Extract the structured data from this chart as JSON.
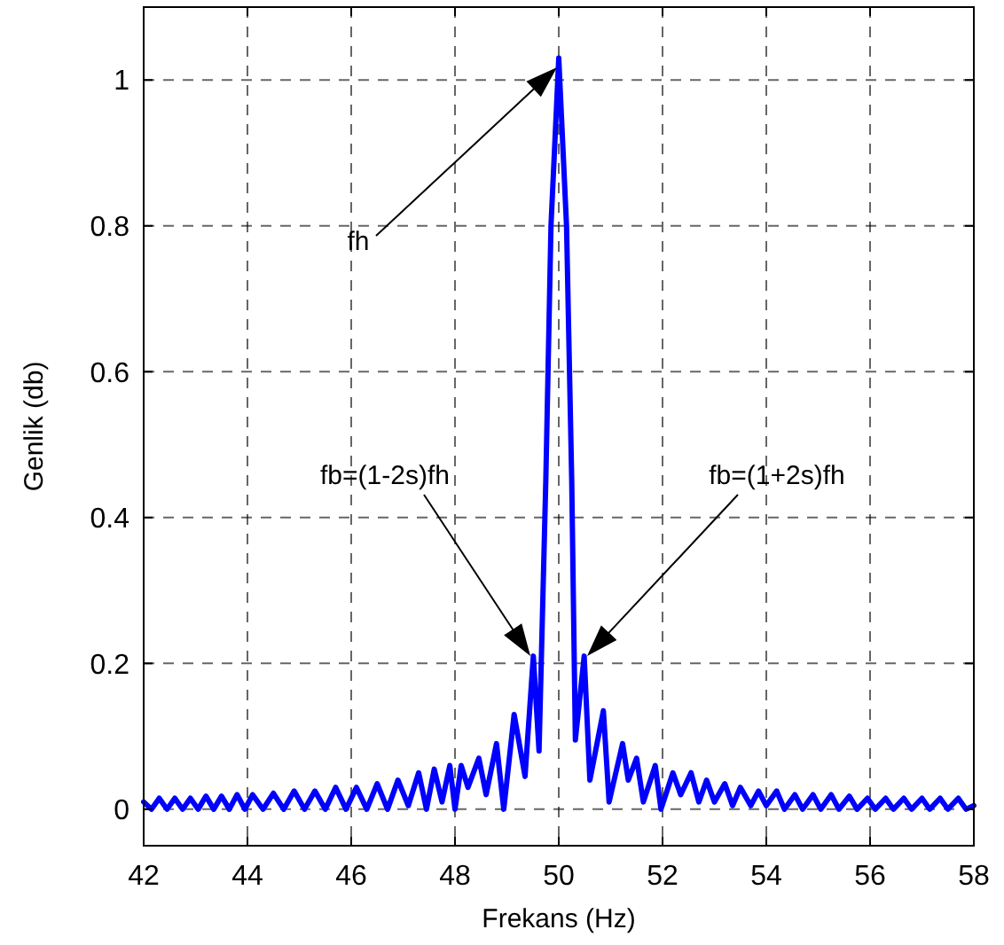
{
  "chart_data": {
    "type": "line",
    "xlabel": "Frekans (Hz)",
    "ylabel": "Genlik (db)",
    "xlim": [
      42,
      58
    ],
    "ylim": [
      -0.05,
      1.1
    ],
    "xticks": [
      42,
      44,
      46,
      48,
      50,
      52,
      54,
      56,
      58
    ],
    "yticks": [
      0,
      0.2,
      0.4,
      0.6,
      0.8,
      1
    ],
    "grid": true,
    "line_style": "solid",
    "marker": "none",
    "series": [
      {
        "color": "#0000ff",
        "x": [
          42.0,
          42.15,
          42.3,
          42.45,
          42.6,
          42.75,
          42.9,
          43.05,
          43.2,
          43.35,
          43.5,
          43.65,
          43.8,
          43.95,
          44.1,
          44.3,
          44.5,
          44.7,
          44.9,
          45.1,
          45.3,
          45.5,
          45.7,
          45.9,
          46.1,
          46.3,
          46.5,
          46.7,
          46.9,
          47.1,
          47.3,
          47.45,
          47.6,
          47.75,
          47.9,
          48.0,
          48.12,
          48.25,
          48.46,
          48.6,
          48.8,
          48.94,
          49.14,
          49.35,
          49.51,
          49.62,
          49.75,
          49.85,
          50.0,
          50.15,
          50.25,
          50.32,
          50.49,
          50.6,
          50.86,
          50.97,
          51.23,
          51.34,
          51.5,
          51.63,
          51.86,
          51.97,
          52.2,
          52.35,
          52.55,
          52.7,
          52.85,
          53.0,
          53.2,
          53.35,
          53.5,
          53.7,
          53.85,
          54.0,
          54.2,
          54.35,
          54.55,
          54.7,
          54.9,
          55.05,
          55.25,
          55.4,
          55.6,
          55.75,
          55.95,
          56.1,
          56.3,
          56.45,
          56.65,
          56.8,
          57.0,
          57.15,
          57.35,
          57.5,
          57.7,
          57.85,
          58.0
        ],
        "values": [
          0.01,
          0.0,
          0.015,
          0.0,
          0.015,
          0.0,
          0.015,
          0.0,
          0.018,
          0.0,
          0.018,
          0.0,
          0.02,
          0.0,
          0.02,
          0.0,
          0.022,
          0.0,
          0.025,
          0.0,
          0.025,
          0.0,
          0.03,
          0.0,
          0.03,
          0.0,
          0.035,
          0.0,
          0.04,
          0.005,
          0.05,
          0.0,
          0.055,
          0.01,
          0.06,
          0.0,
          0.06,
          0.03,
          0.07,
          0.02,
          0.09,
          0.0,
          0.13,
          0.045,
          0.21,
          0.08,
          0.45,
          0.8,
          1.03,
          0.8,
          0.45,
          0.095,
          0.21,
          0.04,
          0.135,
          0.01,
          0.09,
          0.04,
          0.07,
          0.01,
          0.06,
          0.0,
          0.05,
          0.02,
          0.05,
          0.01,
          0.04,
          0.01,
          0.035,
          0.005,
          0.03,
          0.005,
          0.025,
          0.005,
          0.025,
          0.0,
          0.02,
          0.0,
          0.02,
          0.0,
          0.02,
          0.0,
          0.018,
          0.0,
          0.015,
          0.0,
          0.015,
          0.0,
          0.015,
          0.0,
          0.015,
          0.0,
          0.015,
          0.0,
          0.015,
          0.0,
          0.005
        ]
      }
    ],
    "annotations": [
      "fh",
      "fb=(1-2s)fh",
      "fb=(1+2s)fh"
    ]
  }
}
